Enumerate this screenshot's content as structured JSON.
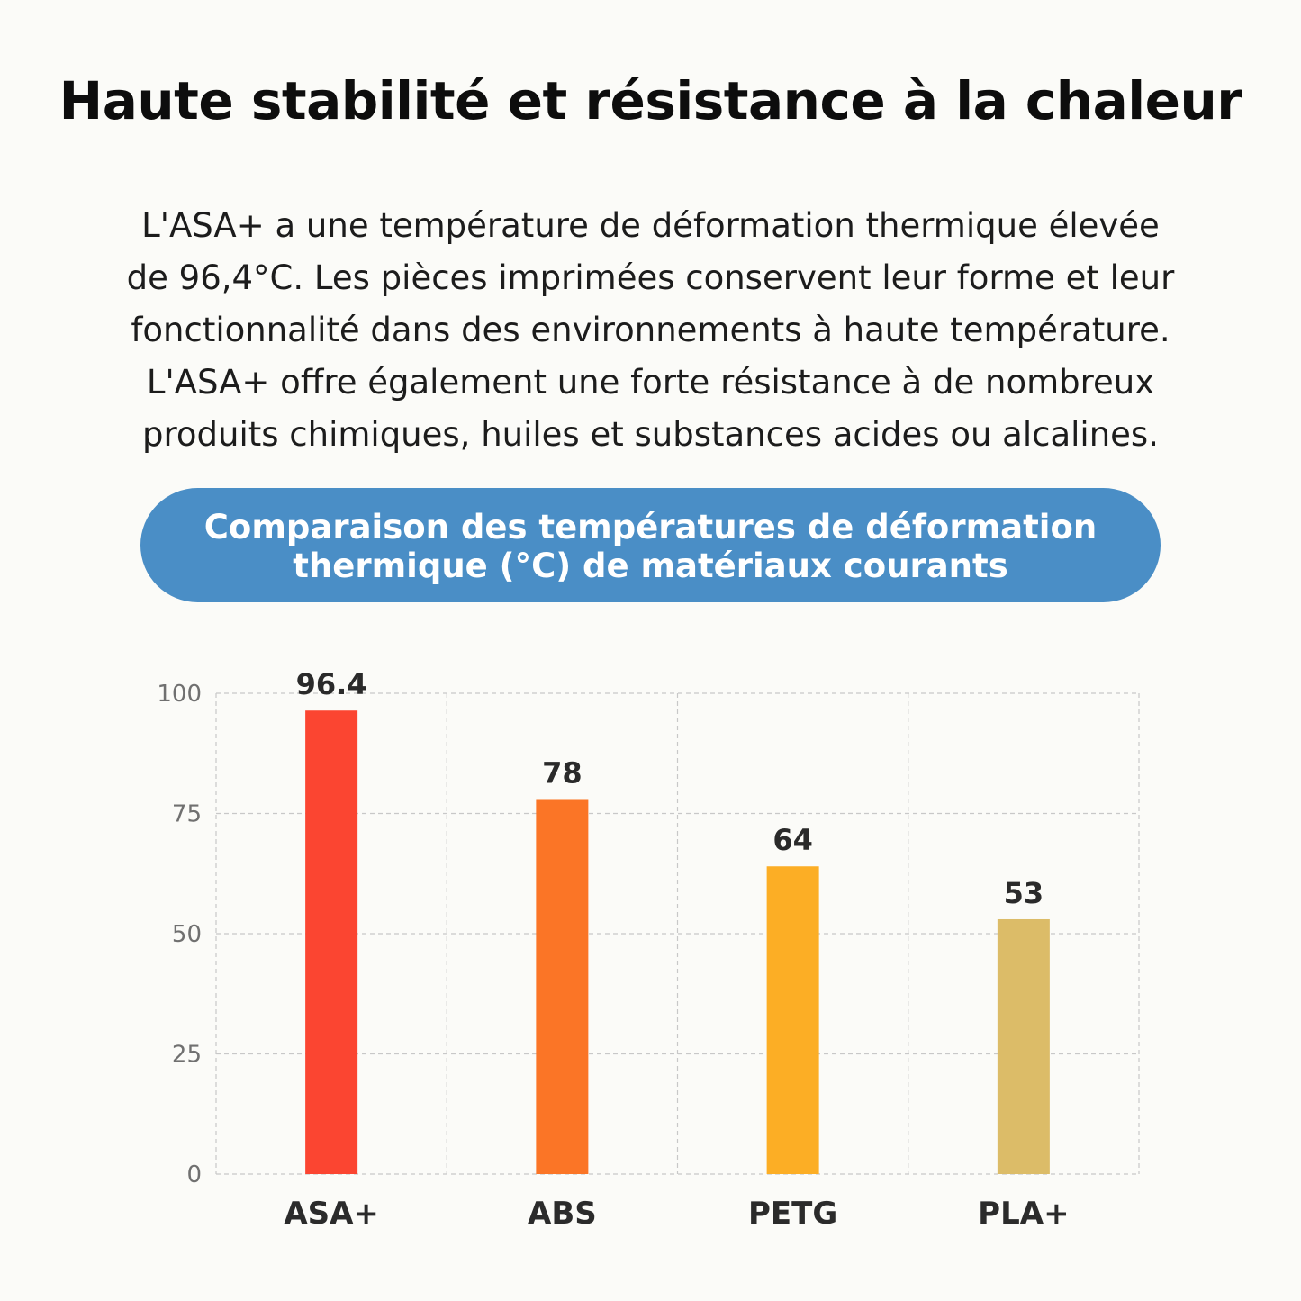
{
  "page": {
    "title": "Haute stabilité et résistance à la chaleur",
    "description_lines": [
      "L'ASA+ a une température de déformation thermique élevée",
      "de 96,4°C. Les pièces imprimées conservent leur forme et leur",
      "fonctionnalité dans des environnements à haute température.",
      "L'ASA+ offre également une forte résistance à de nombreux",
      "produits chimiques, huiles et substances acides ou alcalines."
    ]
  },
  "chart_data": {
    "type": "bar",
    "title_lines": [
      "Comparaison des températures de déformation",
      "thermique (°C) de matériaux courants"
    ],
    "categories": [
      "ASA+",
      "ABS",
      "PETG",
      "PLA+"
    ],
    "values": [
      96.4,
      78,
      64,
      53
    ],
    "value_labels": [
      "96.4",
      "78",
      "64",
      "53"
    ],
    "colors": [
      "#fb4531",
      "#fb7526",
      "#fcae25",
      "#dcbc68"
    ],
    "ylim": [
      0,
      100
    ],
    "yticks": [
      0,
      25,
      50,
      75,
      100
    ],
    "grid": true,
    "legend": "none",
    "xlabel": "",
    "ylabel": ""
  },
  "colors": {
    "banner": "#4a8ec6",
    "background": "#fbfbf8",
    "grid": "#c8c8c8"
  }
}
